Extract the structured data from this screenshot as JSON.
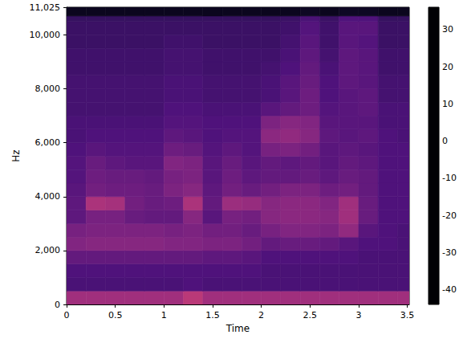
{
  "chart_data": {
    "type": "heatmap",
    "x_label": "Time",
    "y_label": "Hz",
    "xlim": [
      0,
      3.52
    ],
    "xticks": [
      0,
      0.5,
      1,
      1.5,
      2,
      2.5,
      3,
      3.5
    ],
    "ylim": [
      0,
      11025
    ],
    "yticks": [
      0,
      2000,
      4000,
      6000,
      8000,
      10000
    ],
    "grid": false,
    "x_bins": [
      0,
      0.2,
      0.4,
      0.6,
      0.8,
      1.0,
      1.2,
      1.4,
      1.6,
      1.8,
      2.0,
      2.2,
      2.4,
      2.6,
      2.8,
      3.0,
      3.2,
      3.4,
      3.52
    ],
    "y_bins": [
      0,
      500,
      1000,
      1500,
      2000,
      2500,
      3000,
      3500,
      4000,
      4500,
      5000,
      5500,
      6000,
      6500,
      7000,
      7500,
      8000,
      8500,
      9000,
      9500,
      10000,
      10500,
      10700,
      11025
    ],
    "cells": [
      [
        -8,
        -8,
        -8,
        -8,
        -8,
        -8,
        -3,
        -8,
        -8,
        -8,
        -8,
        -8,
        -8,
        -8,
        -8,
        -8,
        -8,
        -8
      ],
      [
        -25,
        -25,
        -25,
        -25,
        -25,
        -25,
        -24,
        -25,
        -25,
        -25,
        -25,
        -25,
        -25,
        -25,
        -25,
        -25,
        -25,
        -25
      ],
      [
        -24,
        -24,
        -24,
        -24,
        -24,
        -24,
        -24,
        -24,
        -24,
        -24,
        -25,
        -25,
        -25,
        -25,
        -25,
        -25,
        -25,
        -25
      ],
      [
        -20,
        -20,
        -20,
        -20,
        -20,
        -20,
        -20,
        -21,
        -21,
        -22,
        -24,
        -24,
        -24,
        -24,
        -24,
        -25,
        -25,
        -25
      ],
      [
        -14,
        -13,
        -13,
        -13,
        -13,
        -14,
        -14,
        -15,
        -15,
        -17,
        -20,
        -19,
        -19,
        -20,
        -22,
        -24,
        -24,
        -25
      ],
      [
        -16,
        -15,
        -15,
        -15,
        -15,
        -16,
        -15,
        -17,
        -17,
        -19,
        -16,
        -14,
        -14,
        -15,
        -11,
        -22,
        -24,
        -25
      ],
      [
        -21,
        -16,
        -16,
        -19,
        -20,
        -20,
        -13,
        -22,
        -16,
        -17,
        -13,
        -12,
        -12,
        -13,
        -8,
        -19,
        -24,
        -24
      ],
      [
        -21,
        -6,
        -7,
        -17,
        -19,
        -18,
        -6,
        -20,
        -9,
        -10,
        -13,
        -12,
        -12,
        -14,
        -8,
        -19,
        -24,
        -24
      ],
      [
        -22,
        -17,
        -18,
        -18,
        -19,
        -15,
        -13,
        -21,
        -17,
        -19,
        -17,
        -15,
        -15,
        -18,
        -17,
        -20,
        -24,
        -24
      ],
      [
        -23,
        -18,
        -19,
        -19,
        -20,
        -16,
        -15,
        -22,
        -18,
        -21,
        -20,
        -20,
        -19,
        -21,
        -19,
        -20,
        -24,
        -24
      ],
      [
        -23,
        -19,
        -21,
        -22,
        -22,
        -14,
        -15,
        -22,
        -19,
        -22,
        -20,
        -21,
        -20,
        -22,
        -20,
        -21,
        -24,
        -24
      ],
      [
        -24,
        -22,
        -23,
        -23,
        -23,
        -18,
        -19,
        -23,
        -21,
        -23,
        -16,
        -15,
        -17,
        -22,
        -21,
        -22,
        -24,
        -24
      ],
      [
        -25,
        -24,
        -24,
        -24,
        -24,
        -21,
        -22,
        -24,
        -23,
        -23,
        -12,
        -11,
        -13,
        -21,
        -22,
        -21,
        -24,
        -25
      ],
      [
        -25,
        -25,
        -25,
        -25,
        -25,
        -23,
        -23,
        -24,
        -24,
        -24,
        -15,
        -13,
        -14,
        -22,
        -22,
        -22,
        -25,
        -25
      ],
      [
        -26,
        -26,
        -26,
        -26,
        -26,
        -24,
        -24,
        -25,
        -25,
        -25,
        -22,
        -20,
        -18,
        -23,
        -22,
        -21,
        -25,
        -25
      ],
      [
        -26,
        -26,
        -26,
        -26,
        -26,
        -25,
        -25,
        -26,
        -26,
        -26,
        -25,
        -22,
        -18,
        -24,
        -22,
        -21,
        -26,
        -26
      ],
      [
        -26,
        -26,
        -26,
        -26,
        -26,
        -25,
        -25,
        -26,
        -26,
        -26,
        -25,
        -22,
        -19,
        -24,
        -21,
        -22,
        -26,
        -26
      ],
      [
        -27,
        -27,
        -27,
        -27,
        -27,
        -26,
        -26,
        -27,
        -27,
        -27,
        -26,
        -24,
        -20,
        -25,
        -21,
        -22,
        -27,
        -27
      ],
      [
        -27,
        -27,
        -27,
        -27,
        -27,
        -26,
        -26,
        -27,
        -27,
        -27,
        -27,
        -25,
        -21,
        -26,
        -21,
        -22,
        -27,
        -27
      ],
      [
        -28,
        -28,
        -28,
        -28,
        -28,
        -27,
        -27,
        -28,
        -28,
        -28,
        -28,
        -26,
        -22,
        -27,
        -22,
        -23,
        -28,
        -28
      ],
      [
        -28,
        -28,
        -28,
        -28,
        -28,
        -28,
        -28,
        -28,
        -28,
        -28,
        -28,
        -27,
        -23,
        -27,
        -22,
        -22,
        -28,
        -28
      ],
      [
        -29,
        -29,
        -29,
        -29,
        -29,
        -29,
        -29,
        -29,
        -29,
        -29,
        -29,
        -28,
        -25,
        -28,
        -24,
        -24,
        -29,
        -29
      ],
      [
        -40,
        -40,
        -40,
        -40,
        -40,
        -40,
        -40,
        -40,
        -40,
        -40,
        -40,
        -40,
        -39,
        -40,
        -39,
        -39,
        -40,
        -40
      ]
    ],
    "colorbar": {
      "range": [
        -44,
        36
      ],
      "ticks": [
        -40,
        -30,
        -20,
        -10,
        0,
        10,
        20,
        30
      ]
    }
  }
}
